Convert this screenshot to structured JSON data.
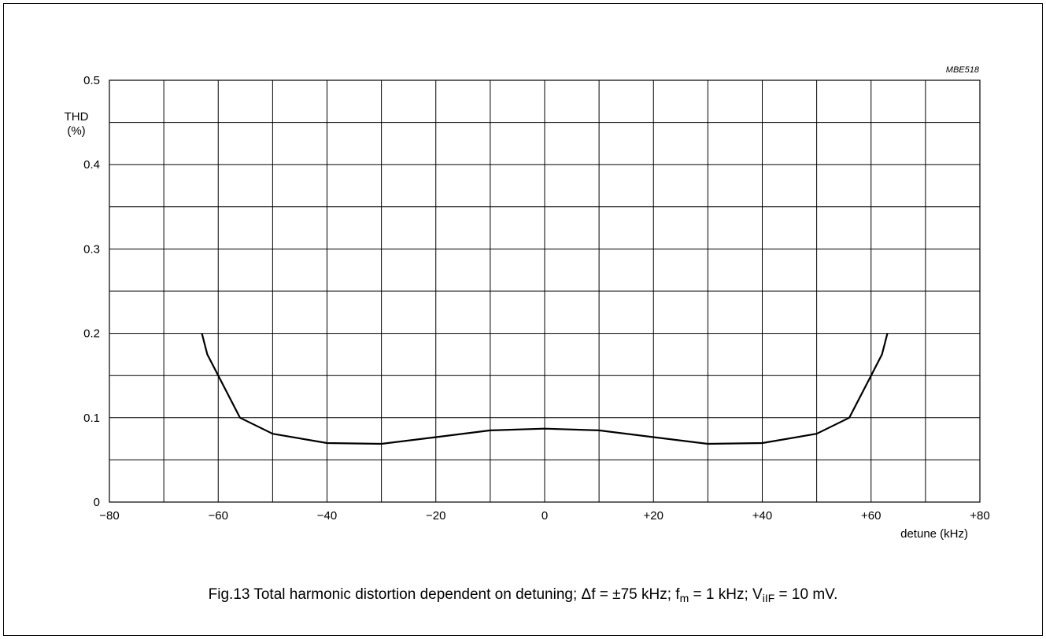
{
  "chart_data": {
    "type": "line",
    "figure_code": "MBE518",
    "ylabel": "THD",
    "ylabel_unit": "(%)",
    "xlabel": "detune (kHz)",
    "xlim": [
      -80,
      80
    ],
    "ylim": [
      0,
      0.5
    ],
    "x_ticks": [
      -80,
      -60,
      -40,
      -20,
      0,
      20,
      40,
      60,
      80
    ],
    "x_tick_labels": [
      "−80",
      "−60",
      "−40",
      "−20",
      "0",
      "+20",
      "+40",
      "+60",
      "+80"
    ],
    "y_ticks": [
      0,
      0.1,
      0.2,
      0.3,
      0.4,
      0.5
    ],
    "y_tick_labels": [
      "0",
      "0.1",
      "0.2",
      "0.3",
      "0.4",
      "0.5"
    ],
    "grid": true,
    "x_grid_step": 10,
    "y_grid_step": 0.05,
    "series": [
      {
        "x": [
          -63,
          -62,
          -60,
          -56,
          -50,
          -40,
          -30,
          -20,
          -10,
          0,
          10,
          20,
          30,
          40,
          50,
          56,
          60,
          62,
          63
        ],
        "y": [
          0.2,
          0.175,
          0.15,
          0.1,
          0.081,
          0.07,
          0.069,
          0.077,
          0.085,
          0.087,
          0.085,
          0.077,
          0.069,
          0.07,
          0.081,
          0.1,
          0.15,
          0.175,
          0.2
        ],
        "color": "#000000"
      }
    ]
  },
  "caption": {
    "prefix": "Fig.13  Total harmonic distortion dependent on detuning; ",
    "delta_f": "Δf = ±75 kHz; f",
    "fm_sub": "m",
    "fm_value": " = 1 kHz; V",
    "vif_sub": "iIF",
    "vif_value": " = 10 mV."
  }
}
